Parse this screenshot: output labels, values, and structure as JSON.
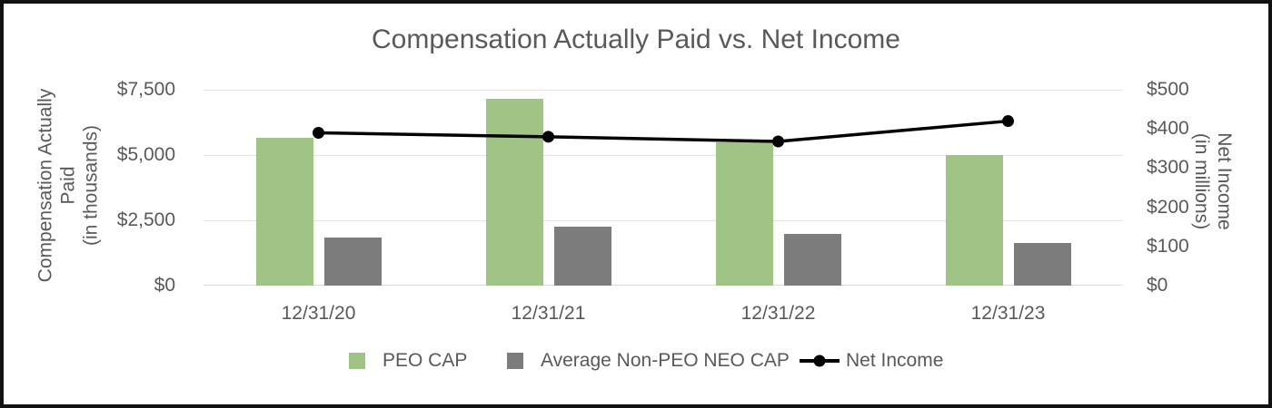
{
  "chart_data": {
    "type": "combo-bar-line",
    "title": "Compensation Actually Paid vs. Net Income",
    "categories": [
      "12/31/20",
      "12/31/21",
      "12/31/22",
      "12/31/23"
    ],
    "series": [
      {
        "name": "PEO CAP",
        "type": "bar",
        "axis": "left",
        "color": "#a0c486",
        "values": [
          5650,
          7150,
          5500,
          5000
        ]
      },
      {
        "name": "Average Non-PEO NEO CAP",
        "type": "bar",
        "axis": "left",
        "color": "#7d7c7d",
        "values": [
          1830,
          2260,
          1990,
          1640
        ]
      },
      {
        "name": "Net Income",
        "type": "line",
        "axis": "right",
        "color": "#000000",
        "values": [
          390,
          380,
          368,
          420
        ]
      }
    ],
    "left_axis": {
      "title_lines": [
        "Compensation Actually",
        "Paid",
        "(in thousands)"
      ],
      "ticks": [
        "$0",
        "$2,500",
        "$5,000",
        "$7,500"
      ],
      "tick_values": [
        0,
        2500,
        5000,
        7500
      ],
      "range": [
        0,
        7500
      ]
    },
    "right_axis": {
      "title_lines": [
        "Net Income",
        "(in millions)"
      ],
      "ticks": [
        "$0",
        "$100",
        "$200",
        "$300",
        "$400",
        "$500"
      ],
      "tick_values": [
        0,
        100,
        200,
        300,
        400,
        500
      ],
      "range": [
        0,
        500
      ]
    },
    "legend_position": "bottom",
    "grid": "horizontal",
    "colors": {
      "text": "#595959",
      "gridline": "#e3e3e3",
      "frame_border": "#121212"
    }
  }
}
